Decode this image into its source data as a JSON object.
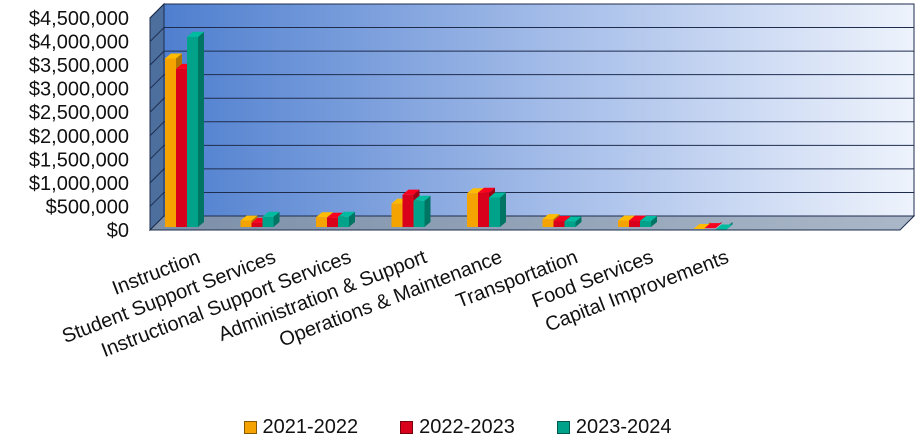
{
  "chart_data": {
    "type": "bar",
    "title": "",
    "xlabel": "",
    "ylabel": "",
    "categories": [
      "Instruction",
      "Student Support Services",
      "Instructional Support Services",
      "Administration & Support",
      "Operations & Maintenance",
      "Transportation",
      "Food Services",
      "Capital Improvements"
    ],
    "series": [
      {
        "name": "2021-2022",
        "color": "#f5a300",
        "values": [
          3640000,
          200000,
          270000,
          560000,
          780000,
          230000,
          200000,
          20000
        ]
      },
      {
        "name": "2022-2023",
        "color": "#d9001b",
        "values": [
          3420000,
          150000,
          260000,
          750000,
          790000,
          190000,
          200000,
          40000
        ]
      },
      {
        "name": "2023-2024",
        "color": "#00a38a",
        "values": [
          4100000,
          280000,
          280000,
          620000,
          690000,
          180000,
          190000,
          10000
        ]
      }
    ],
    "yticks": [
      "$0",
      "$500,000",
      "$1,000,000",
      "$1,500,000",
      "$2,000,000",
      "$2,500,000",
      "$3,000,000",
      "$3,500,000",
      "$4,000,000",
      "$4,500,000"
    ],
    "ylim": [
      0,
      4500000
    ],
    "grid": true,
    "legend_position": "bottom"
  }
}
